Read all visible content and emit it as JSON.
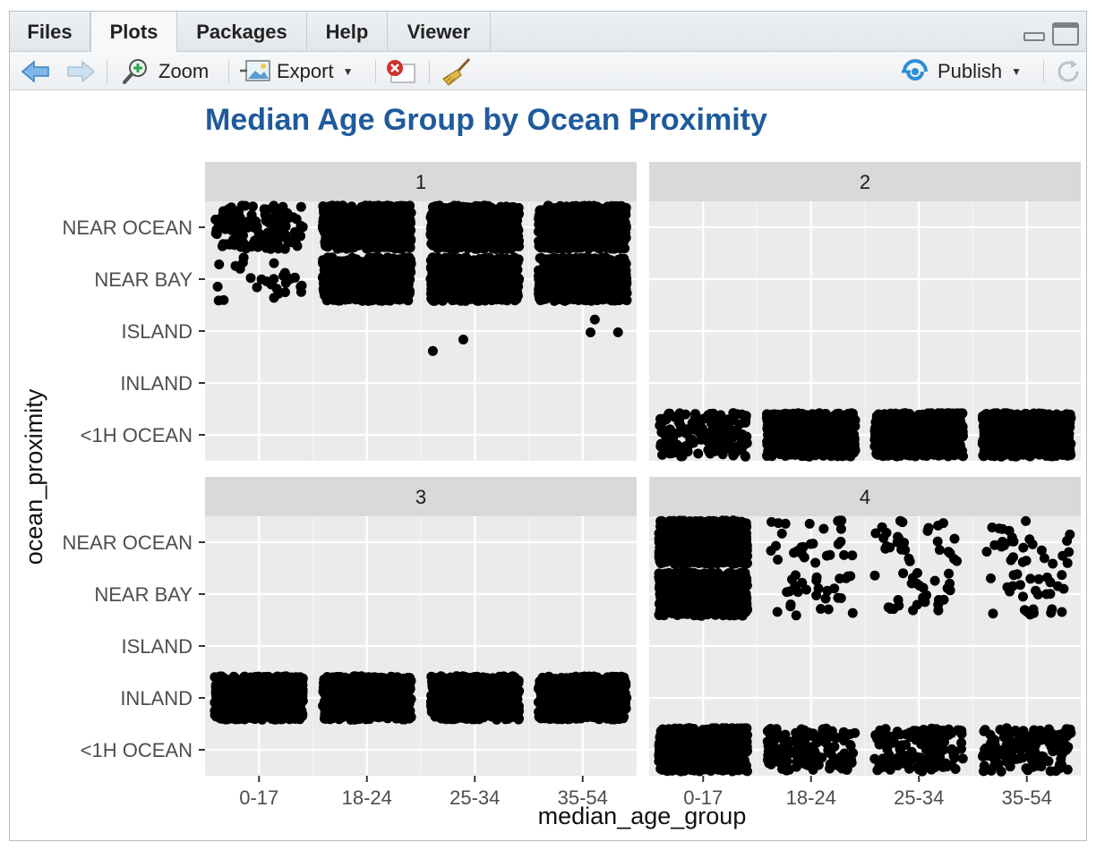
{
  "tabs": [
    {
      "label": "Files"
    },
    {
      "label": "Plots"
    },
    {
      "label": "Packages"
    },
    {
      "label": "Help"
    },
    {
      "label": "Viewer"
    }
  ],
  "active_tab": "Plots",
  "toolbar": {
    "zoom_label": "Zoom",
    "export_label": "Export",
    "publish_label": "Publish",
    "icons": [
      "back-arrow-icon",
      "forward-arrow-icon",
      "zoom-icon",
      "export-image-icon",
      "remove-plot-icon",
      "clear-all-broom-icon",
      "publish-icon",
      "refresh-icon"
    ]
  },
  "colors": {
    "title": "#1f5a9c",
    "panel_bg": "#ebebeb",
    "strip_bg": "#d9d9d9",
    "points": "#000000"
  },
  "chart_data": {
    "type": "scatter",
    "title": "Median Age Group by Ocean Proximity",
    "xlabel": "median_age_group",
    "ylabel": "ocean_proximity",
    "x_categories": [
      "0-17",
      "18-24",
      "25-34",
      "35-54"
    ],
    "y_categories": [
      "<1H OCEAN",
      "INLAND",
      "ISLAND",
      "NEAR BAY",
      "NEAR OCEAN"
    ],
    "jitter": true,
    "facets": [
      {
        "label": "1",
        "cells": [
          {
            "x": "0-17",
            "y": "NEAR OCEAN",
            "density": "medium"
          },
          {
            "x": "0-17",
            "y": "NEAR BAY",
            "density": "sparse"
          },
          {
            "x": "18-24",
            "y": "NEAR OCEAN",
            "density": "dense"
          },
          {
            "x": "18-24",
            "y": "NEAR BAY",
            "density": "dense"
          },
          {
            "x": "25-34",
            "y": "NEAR OCEAN",
            "density": "dense"
          },
          {
            "x": "25-34",
            "y": "NEAR BAY",
            "density": "dense"
          },
          {
            "x": "25-34",
            "y": "ISLAND",
            "density": "2 points"
          },
          {
            "x": "35-54",
            "y": "NEAR OCEAN",
            "density": "dense"
          },
          {
            "x": "35-54",
            "y": "NEAR BAY",
            "density": "dense"
          },
          {
            "x": "35-54",
            "y": "ISLAND",
            "density": "3 points"
          }
        ]
      },
      {
        "label": "2",
        "cells": [
          {
            "x": "0-17",
            "y": "<1H OCEAN",
            "density": "medium"
          },
          {
            "x": "18-24",
            "y": "<1H OCEAN",
            "density": "dense"
          },
          {
            "x": "25-34",
            "y": "<1H OCEAN",
            "density": "dense"
          },
          {
            "x": "35-54",
            "y": "<1H OCEAN",
            "density": "dense"
          }
        ]
      },
      {
        "label": "3",
        "cells": [
          {
            "x": "0-17",
            "y": "INLAND",
            "density": "dense"
          },
          {
            "x": "18-24",
            "y": "INLAND",
            "density": "dense"
          },
          {
            "x": "25-34",
            "y": "INLAND",
            "density": "dense"
          },
          {
            "x": "35-54",
            "y": "INLAND",
            "density": "dense"
          }
        ]
      },
      {
        "label": "4",
        "cells": [
          {
            "x": "0-17",
            "y": "NEAR OCEAN",
            "density": "dense"
          },
          {
            "x": "0-17",
            "y": "NEAR BAY",
            "density": "dense"
          },
          {
            "x": "0-17",
            "y": "<1H OCEAN",
            "density": "dense"
          },
          {
            "x": "18-24",
            "y": "NEAR OCEAN",
            "density": "sparse"
          },
          {
            "x": "18-24",
            "y": "NEAR BAY",
            "density": "sparse"
          },
          {
            "x": "18-24",
            "y": "<1H OCEAN",
            "density": "medium"
          },
          {
            "x": "25-34",
            "y": "NEAR OCEAN",
            "density": "sparse"
          },
          {
            "x": "25-34",
            "y": "NEAR BAY",
            "density": "sparse"
          },
          {
            "x": "25-34",
            "y": "<1H OCEAN",
            "density": "medium"
          },
          {
            "x": "35-54",
            "y": "NEAR OCEAN",
            "density": "sparse"
          },
          {
            "x": "35-54",
            "y": "NEAR BAY",
            "density": "sparse"
          },
          {
            "x": "35-54",
            "y": "<1H OCEAN",
            "density": "medium"
          }
        ]
      }
    ]
  }
}
